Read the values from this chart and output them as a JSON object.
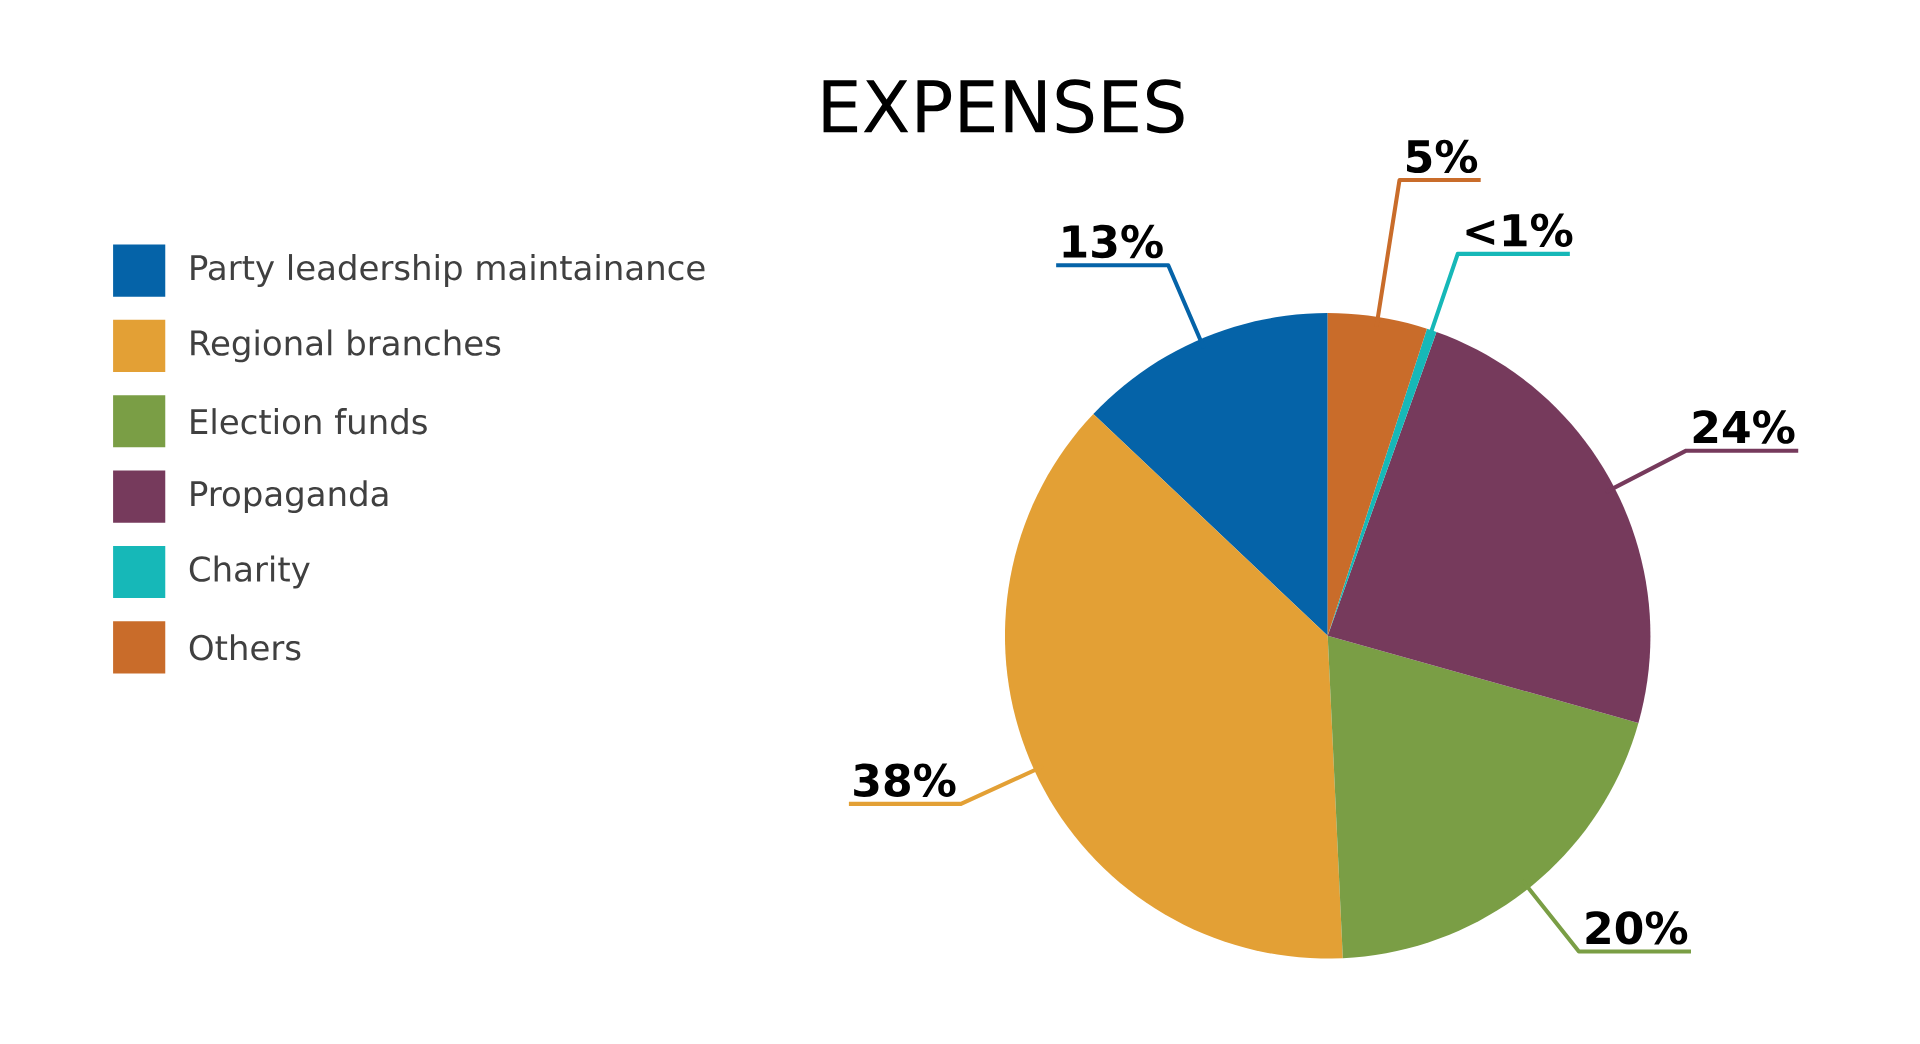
{
  "chart_data": {
    "type": "pie",
    "title": "EXPENSES",
    "categories": [
      "Party leadership maintainance",
      "Regional branches",
      "Election funds",
      "Propaganda",
      "Charity",
      "Others"
    ],
    "values": [
      13,
      38,
      20,
      24,
      0.5,
      5
    ],
    "value_labels": [
      "13%",
      "38%",
      "20%",
      "24%",
      "<1%",
      "5%"
    ],
    "colors": [
      "#0563a8",
      "#e3a035",
      "#7a9e45",
      "#763a5c",
      "#16b8b8",
      "#c96c2a"
    ],
    "legend": "left"
  }
}
